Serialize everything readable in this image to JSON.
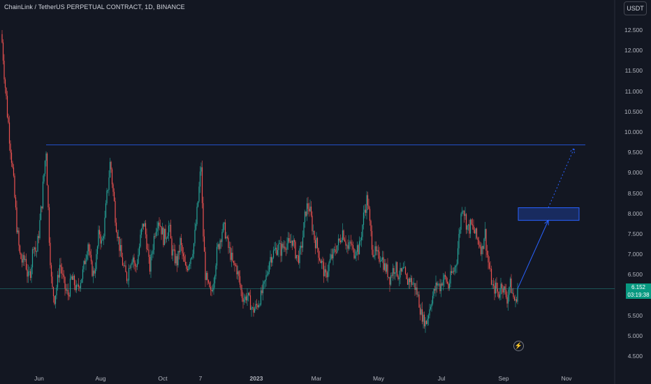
{
  "header": {
    "title": "ChainLink / TetherUS PERPETUAL CONTRACT, 1D, BINANCE",
    "currency_button": "USDT"
  },
  "price_badge": {
    "price": "6.152",
    "countdown": "03:19:38"
  },
  "icons": {
    "bolt": "lightning-bolt-icon"
  },
  "colors": {
    "background": "#131722",
    "up": "#26a69a",
    "down": "#ef5350",
    "line": "#2962ff",
    "price_badge": "#089981"
  },
  "chart_data": {
    "type": "candlestick",
    "y_ticks": [
      "12.500",
      "12.000",
      "11.500",
      "11.000",
      "10.500",
      "10.000",
      "9.500",
      "9.000",
      "8.500",
      "8.000",
      "7.500",
      "7.000",
      "6.500",
      "6.000",
      "5.500",
      "5.000",
      "4.500"
    ],
    "x_ticks": [
      "Jun",
      "Aug",
      "Oct",
      "7",
      "2023",
      "Mar",
      "May",
      "Jul",
      "Sep",
      "Nov"
    ],
    "ylim": [
      4.5,
      12.5
    ],
    "close_path": [
      [
        0,
        12.7
      ],
      [
        2,
        12.4
      ],
      [
        5,
        11.8
      ],
      [
        8,
        11.0
      ],
      [
        12,
        10.2
      ],
      [
        16,
        9.5
      ],
      [
        20,
        8.6
      ],
      [
        24,
        7.7
      ],
      [
        28,
        7.0
      ],
      [
        32,
        6.8
      ],
      [
        36,
        6.9
      ],
      [
        40,
        6.4
      ],
      [
        44,
        6.6
      ],
      [
        48,
        7.3
      ],
      [
        52,
        7.0
      ],
      [
        56,
        7.6
      ],
      [
        60,
        8.3
      ],
      [
        64,
        9.2
      ],
      [
        66,
        9.6
      ],
      [
        70,
        7.6
      ],
      [
        74,
        6.2
      ],
      [
        78,
        5.9
      ],
      [
        82,
        6.3
      ],
      [
        86,
        6.8
      ],
      [
        90,
        6.4
      ],
      [
        94,
        6.1
      ],
      [
        98,
        6.0
      ],
      [
        102,
        6.4
      ],
      [
        106,
        6.3
      ],
      [
        110,
        6.1
      ],
      [
        114,
        6.3
      ],
      [
        118,
        6.5
      ],
      [
        122,
        6.9
      ],
      [
        126,
        7.3
      ],
      [
        130,
        6.7
      ],
      [
        134,
        6.5
      ],
      [
        138,
        6.9
      ],
      [
        142,
        7.6
      ],
      [
        146,
        7.2
      ],
      [
        150,
        7.8
      ],
      [
        154,
        8.6
      ],
      [
        158,
        9.3
      ],
      [
        162,
        8.5
      ],
      [
        166,
        7.8
      ],
      [
        170,
        7.3
      ],
      [
        174,
        6.9
      ],
      [
        178,
        6.6
      ],
      [
        182,
        6.4
      ],
      [
        186,
        6.8
      ],
      [
        190,
        7.0
      ],
      [
        194,
        6.6
      ],
      [
        198,
        7.0
      ],
      [
        202,
        7.5
      ],
      [
        206,
        7.8
      ],
      [
        210,
        7.3
      ],
      [
        214,
        6.6
      ],
      [
        218,
        7.1
      ],
      [
        222,
        7.6
      ],
      [
        226,
        7.9
      ],
      [
        230,
        7.7
      ],
      [
        234,
        7.4
      ],
      [
        238,
        7.5
      ],
      [
        242,
        7.7
      ],
      [
        246,
        7.1
      ],
      [
        250,
        6.9
      ],
      [
        254,
        6.8
      ],
      [
        258,
        7.3
      ],
      [
        262,
        6.9
      ],
      [
        266,
        6.6
      ],
      [
        270,
        6.8
      ],
      [
        274,
        7.0
      ],
      [
        278,
        7.3
      ],
      [
        282,
        8.0
      ],
      [
        286,
        8.8
      ],
      [
        288,
        9.2
      ],
      [
        290,
        7.8
      ],
      [
        294,
        6.5
      ],
      [
        298,
        6.2
      ],
      [
        302,
        6.0
      ],
      [
        306,
        6.4
      ],
      [
        310,
        7.0
      ],
      [
        314,
        7.3
      ],
      [
        318,
        7.6
      ],
      [
        322,
        7.6
      ],
      [
        326,
        7.2
      ],
      [
        330,
        7.0
      ],
      [
        334,
        6.7
      ],
      [
        338,
        6.7
      ],
      [
        342,
        6.4
      ],
      [
        346,
        6.0
      ],
      [
        350,
        5.9
      ],
      [
        354,
        6.0
      ],
      [
        358,
        5.8
      ],
      [
        362,
        5.6
      ],
      [
        366,
        5.7
      ],
      [
        370,
        5.8
      ],
      [
        374,
        6.0
      ],
      [
        378,
        6.2
      ],
      [
        382,
        6.5
      ],
      [
        386,
        6.9
      ],
      [
        390,
        7.0
      ],
      [
        394,
        7.1
      ],
      [
        398,
        7.2
      ],
      [
        402,
        7.1
      ],
      [
        406,
        7.2
      ],
      [
        410,
        7.3
      ],
      [
        414,
        7.2
      ],
      [
        418,
        7.4
      ],
      [
        422,
        7.1
      ],
      [
        426,
        6.9
      ],
      [
        430,
        7.0
      ],
      [
        434,
        7.5
      ],
      [
        438,
        8.1
      ],
      [
        442,
        8.2
      ],
      [
        446,
        7.8
      ],
      [
        450,
        7.4
      ],
      [
        454,
        7.2
      ],
      [
        458,
        6.9
      ],
      [
        462,
        6.7
      ],
      [
        466,
        6.4
      ],
      [
        470,
        6.7
      ],
      [
        474,
        6.9
      ],
      [
        478,
        7.0
      ],
      [
        482,
        7.2
      ],
      [
        486,
        7.3
      ],
      [
        490,
        7.6
      ],
      [
        494,
        7.4
      ],
      [
        498,
        7.1
      ],
      [
        502,
        7.3
      ],
      [
        506,
        7.0
      ],
      [
        510,
        7.2
      ],
      [
        514,
        7.1
      ],
      [
        518,
        7.6
      ],
      [
        522,
        8.1
      ],
      [
        526,
        8.4
      ],
      [
        530,
        7.6
      ],
      [
        534,
        7.1
      ],
      [
        538,
        7.0
      ],
      [
        542,
        6.9
      ],
      [
        546,
        7.0
      ],
      [
        550,
        6.7
      ],
      [
        554,
        6.6
      ],
      [
        558,
        6.4
      ],
      [
        562,
        6.6
      ],
      [
        566,
        6.7
      ],
      [
        570,
        6.5
      ],
      [
        574,
        6.5
      ],
      [
        578,
        6.6
      ],
      [
        582,
        6.3
      ],
      [
        586,
        6.4
      ],
      [
        590,
        6.3
      ],
      [
        594,
        6.2
      ],
      [
        598,
        6.0
      ],
      [
        602,
        5.6
      ],
      [
        606,
        5.4
      ],
      [
        610,
        5.3
      ],
      [
        614,
        5.6
      ],
      [
        618,
        5.9
      ],
      [
        622,
        6.1
      ],
      [
        626,
        6.3
      ],
      [
        630,
        6.2
      ],
      [
        634,
        6.4
      ],
      [
        638,
        6.4
      ],
      [
        642,
        6.2
      ],
      [
        646,
        6.5
      ],
      [
        650,
        6.6
      ],
      [
        654,
        6.9
      ],
      [
        658,
        7.6
      ],
      [
        662,
        8.3
      ],
      [
        666,
        7.9
      ],
      [
        670,
        7.6
      ],
      [
        674,
        7.7
      ],
      [
        678,
        7.6
      ],
      [
        682,
        7.4
      ],
      [
        686,
        7.3
      ],
      [
        690,
        7.1
      ],
      [
        694,
        7.6
      ],
      [
        698,
        6.9
      ],
      [
        702,
        6.5
      ],
      [
        706,
        6.1
      ],
      [
        710,
        6.2
      ],
      [
        714,
        6.0
      ],
      [
        718,
        6.3
      ],
      [
        722,
        6.1
      ],
      [
        726,
        5.9
      ],
      [
        730,
        6.3
      ],
      [
        734,
        6.0
      ],
      [
        738,
        5.8
      ],
      [
        741,
        6.15
      ]
    ],
    "resistance_level": 9.68,
    "current_price_level": 6.152,
    "target_box": {
      "x_start": 742,
      "x_end": 829,
      "y_low": 7.83,
      "y_high": 8.14
    },
    "projection": [
      [
        741,
        6.15
      ],
      [
        785,
        7.83
      ]
    ],
    "projection_dotted": [
      [
        785,
        8.14
      ],
      [
        822,
        9.6
      ]
    ]
  }
}
